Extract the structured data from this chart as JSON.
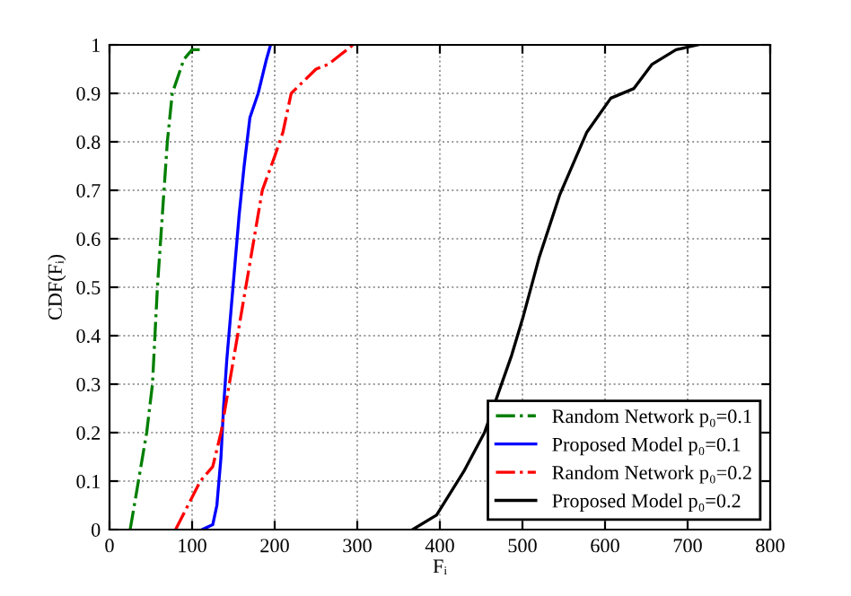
{
  "chart_data": {
    "type": "line",
    "xlabel": "Fᵢ",
    "ylabel": "CDF(Fᵢ)",
    "xlim": [
      0,
      800
    ],
    "ylim": [
      0,
      1
    ],
    "xticks": [
      0,
      100,
      200,
      300,
      400,
      500,
      600,
      700,
      800
    ],
    "yticks": [
      0,
      0.1,
      0.2,
      0.3,
      0.4,
      0.5,
      0.6,
      0.7,
      0.8,
      0.9,
      1
    ],
    "grid": true,
    "legend": "bottom right",
    "marker": "none",
    "series": [
      {
        "name": "Random Network p₀=0.1",
        "color": "#007f00",
        "line_style": "dashdot",
        "x": [
          25,
          35,
          45,
          52,
          55,
          58,
          62,
          66,
          70,
          76,
          90,
          100,
          110
        ],
        "values": [
          0,
          0.1,
          0.2,
          0.3,
          0.4,
          0.5,
          0.6,
          0.7,
          0.8,
          0.9,
          0.97,
          0.99,
          0.99
        ]
      },
      {
        "name": "Proposed Model p₀=0.1",
        "color": "#0000ff",
        "line_style": "solid",
        "x": [
          112,
          125,
          130,
          135,
          138,
          142,
          147,
          152,
          157,
          163,
          170,
          180,
          190,
          195
        ],
        "values": [
          0,
          0.01,
          0.05,
          0.15,
          0.25,
          0.35,
          0.45,
          0.55,
          0.65,
          0.75,
          0.85,
          0.9,
          0.97,
          1
        ]
      },
      {
        "name": "Random Network p₀=0.2",
        "color": "#ff0000",
        "line_style": "dashdot",
        "x": [
          80,
          95,
          110,
          125,
          135,
          145,
          155,
          165,
          175,
          185,
          200,
          210,
          220,
          250,
          265,
          280,
          295
        ],
        "values": [
          0,
          0.05,
          0.1,
          0.13,
          0.2,
          0.3,
          0.4,
          0.5,
          0.6,
          0.7,
          0.77,
          0.82,
          0.9,
          0.95,
          0.96,
          0.98,
          1
        ]
      },
      {
        "name": "Proposed Model p₀=0.2",
        "color": "#000000",
        "line_style": "solid",
        "x": [
          367,
          396,
          429,
          454,
          487,
          501,
          520,
          545,
          578,
          607,
          635,
          657,
          686,
          712
        ],
        "values": [
          0,
          0.03,
          0.12,
          0.2,
          0.36,
          0.44,
          0.56,
          0.69,
          0.82,
          0.89,
          0.91,
          0.96,
          0.99,
          1
        ]
      }
    ]
  }
}
